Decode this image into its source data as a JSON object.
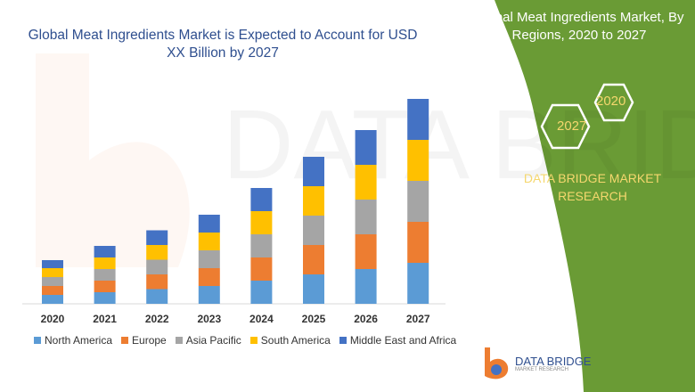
{
  "title": "Global Meat Ingredients Market is Expected to Account for USD XX Billion by 2027",
  "side_panel": {
    "title": "Global Meat Ingredients Market, By Regions, 2020 to 2027",
    "hex_top": "2020",
    "hex_bottom": "2027",
    "brand": "DATA BRIDGE MARKET RESEARCH",
    "panel_color": "#6a9b35"
  },
  "logo": {
    "name": "DATA BRIDGE",
    "tagline": "MARKET RESEARCH"
  },
  "chart_data": {
    "type": "bar",
    "stacked": true,
    "title": "Global Meat Ingredients Market is Expected to Account for USD XX Billion by 2027",
    "categories": [
      "2020",
      "2021",
      "2022",
      "2023",
      "2024",
      "2025",
      "2026",
      "2027"
    ],
    "series": [
      {
        "name": "North America",
        "color": "#5b9bd5",
        "values": [
          10,
          13,
          16.5,
          20,
          26,
          33,
          39,
          46
        ]
      },
      {
        "name": "Europe",
        "color": "#ed7d31",
        "values": [
          10,
          13,
          16.5,
          20,
          26,
          33,
          39,
          46
        ]
      },
      {
        "name": "Asia Pacific",
        "color": "#a5a5a5",
        "values": [
          10,
          13,
          16.5,
          20,
          26,
          33,
          39,
          46
        ]
      },
      {
        "name": "South America",
        "color": "#ffc000",
        "values": [
          10,
          13,
          16.5,
          20,
          26,
          33,
          39,
          46
        ]
      },
      {
        "name": "Middle East and Africa",
        "color": "#4472c4",
        "values": [
          9,
          13,
          16.5,
          20,
          26,
          33,
          39,
          46
        ]
      }
    ],
    "legend": "bottom",
    "grid": false,
    "y_axis_shown": false
  }
}
